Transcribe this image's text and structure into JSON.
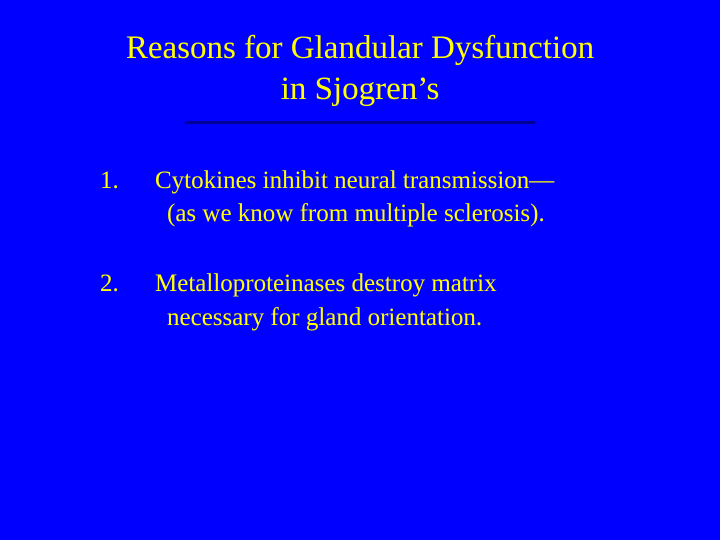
{
  "slide": {
    "background_color": "#0000ff",
    "text_color": "#ffff00",
    "divider_color": "#000099",
    "title_line1": "Reasons for Glandular Dysfunction",
    "title_line2": "in Sjogren’s",
    "title_fontsize": 33,
    "body_fontsize": 25,
    "font_family": "Times New Roman",
    "items": [
      {
        "number": "1.",
        "line1": "Cytokines inhibit neural transmission—",
        "line2": "(as we know from multiple sclerosis)."
      },
      {
        "number": "2.",
        "line1": "Metalloproteinases destroy matrix",
        "line2": "necessary for gland orientation."
      }
    ]
  }
}
